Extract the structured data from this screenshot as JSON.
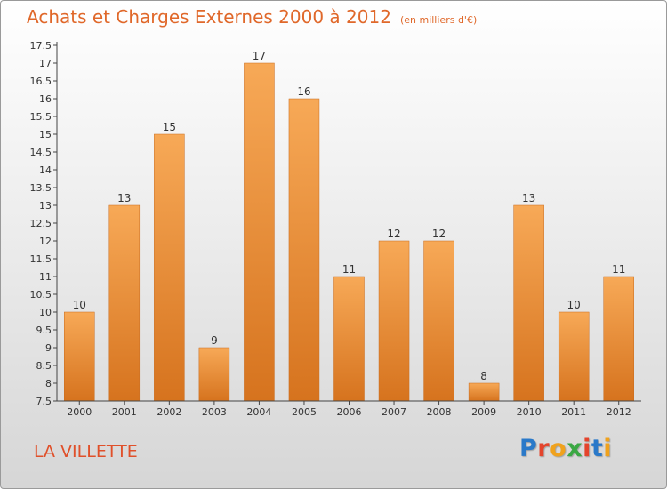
{
  "header": {
    "title": "Achats et Charges Externes 2000 à 2012",
    "unit": "(en milliers d'€)"
  },
  "footer": {
    "place": "LA VILLETTE",
    "logo_text": "Proxiti",
    "logo_colors": [
      "#2a79c9",
      "#e4442c",
      "#f0a21d",
      "#3aa843",
      "#e4442c",
      "#2a79c9",
      "#f0a21d"
    ]
  },
  "colors": {
    "title": "#e0682a",
    "bar_top": "#f7a957",
    "bar_bottom": "#d6731e",
    "axis": "#444444"
  },
  "chart_data": {
    "type": "bar",
    "title": "Achats et Charges Externes 2000 à 2012",
    "xlabel": "",
    "ylabel": "",
    "categories": [
      "2000",
      "2001",
      "2002",
      "2003",
      "2004",
      "2005",
      "2006",
      "2007",
      "2008",
      "2009",
      "2010",
      "2011",
      "2012"
    ],
    "values": [
      10,
      13,
      15,
      9,
      17,
      16,
      11,
      12,
      12,
      8,
      13,
      10,
      11
    ],
    "value_labels": [
      "10",
      "13",
      "15",
      "9",
      "17",
      "16",
      "11",
      "12",
      "12",
      "8",
      "13",
      "10",
      "11"
    ],
    "ylim": [
      7.5,
      17.5
    ],
    "yticks": [
      "7.5",
      "8",
      "8.5",
      "9",
      "9.5",
      "10",
      "10.5",
      "11",
      "11.5",
      "12",
      "12.5",
      "13",
      "13.5",
      "14",
      "14.5",
      "15",
      "15.5",
      "16",
      "16.5",
      "17",
      "17.5"
    ],
    "grid": false
  }
}
